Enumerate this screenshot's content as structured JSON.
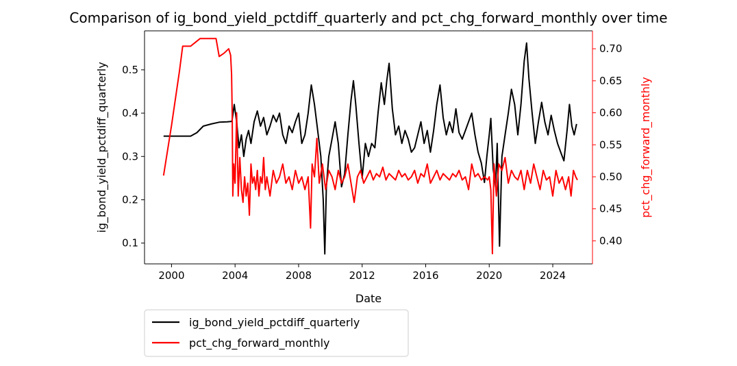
{
  "chart_data": {
    "type": "line",
    "title": "Comparison of ig_bond_yield_pctdiff_quarterly and pct_chg_forward_monthly over time",
    "xlabel": "Date",
    "ylabel_left": "ig_bond_yield_pctdiff_quarterly",
    "ylabel_right": "pct_chg_forward_monthly",
    "x_range": [
      1998.3,
      2026.5
    ],
    "x_ticks": [
      2000,
      2004,
      2008,
      2012,
      2016,
      2020,
      2024
    ],
    "x_tick_labels": [
      "2000",
      "2004",
      "2008",
      "2012",
      "2016",
      "2020",
      "2024"
    ],
    "y_left_range": [
      0.052,
      0.59
    ],
    "y_left_ticks": [
      0.1,
      0.2,
      0.3,
      0.4,
      0.5
    ],
    "y_left_tick_labels": [
      "0.1",
      "0.2",
      "0.3",
      "0.4",
      "0.5"
    ],
    "y_right_range": [
      0.364,
      0.728
    ],
    "y_right_ticks": [
      0.4,
      0.45,
      0.5,
      0.55,
      0.6,
      0.65,
      0.7
    ],
    "y_right_tick_labels": [
      "0.40",
      "0.45",
      "0.50",
      "0.55",
      "0.60",
      "0.65",
      "0.70"
    ],
    "right_axis_color": "#ff0000",
    "legend_position": "below-left",
    "series": [
      {
        "name": "ig_bond_yield_pctdiff_quarterly",
        "axis": "left",
        "color": "#000000",
        "points": [
          [
            1999.5,
            0.347
          ],
          [
            2000.5,
            0.347
          ],
          [
            2001.2,
            0.347
          ],
          [
            2001.6,
            0.355
          ],
          [
            2002.0,
            0.37
          ],
          [
            2002.5,
            0.375
          ],
          [
            2003.0,
            0.379
          ],
          [
            2003.5,
            0.38
          ],
          [
            2003.8,
            0.381
          ],
          [
            2003.95,
            0.42
          ],
          [
            2004.1,
            0.38
          ],
          [
            2004.25,
            0.32
          ],
          [
            2004.4,
            0.35
          ],
          [
            2004.55,
            0.3
          ],
          [
            2004.7,
            0.34
          ],
          [
            2004.85,
            0.36
          ],
          [
            2005.0,
            0.33
          ],
          [
            2005.2,
            0.38
          ],
          [
            2005.4,
            0.405
          ],
          [
            2005.6,
            0.37
          ],
          [
            2005.8,
            0.39
          ],
          [
            2006.0,
            0.35
          ],
          [
            2006.2,
            0.37
          ],
          [
            2006.4,
            0.395
          ],
          [
            2006.6,
            0.38
          ],
          [
            2006.8,
            0.4
          ],
          [
            2007.0,
            0.35
          ],
          [
            2007.2,
            0.33
          ],
          [
            2007.4,
            0.37
          ],
          [
            2007.6,
            0.355
          ],
          [
            2007.8,
            0.38
          ],
          [
            2008.0,
            0.4
          ],
          [
            2008.2,
            0.33
          ],
          [
            2008.4,
            0.35
          ],
          [
            2008.6,
            0.4
          ],
          [
            2008.8,
            0.465
          ],
          [
            2009.0,
            0.42
          ],
          [
            2009.2,
            0.36
          ],
          [
            2009.4,
            0.3
          ],
          [
            2009.55,
            0.2
          ],
          [
            2009.65,
            0.075
          ],
          [
            2009.75,
            0.23
          ],
          [
            2009.9,
            0.3
          ],
          [
            2010.1,
            0.34
          ],
          [
            2010.3,
            0.38
          ],
          [
            2010.5,
            0.33
          ],
          [
            2010.7,
            0.23
          ],
          [
            2010.9,
            0.26
          ],
          [
            2011.1,
            0.35
          ],
          [
            2011.3,
            0.43
          ],
          [
            2011.45,
            0.475
          ],
          [
            2011.6,
            0.42
          ],
          [
            2011.8,
            0.33
          ],
          [
            2012.0,
            0.25
          ],
          [
            2012.2,
            0.33
          ],
          [
            2012.4,
            0.3
          ],
          [
            2012.6,
            0.33
          ],
          [
            2012.8,
            0.32
          ],
          [
            2013.0,
            0.4
          ],
          [
            2013.2,
            0.47
          ],
          [
            2013.4,
            0.42
          ],
          [
            2013.55,
            0.475
          ],
          [
            2013.7,
            0.515
          ],
          [
            2013.9,
            0.41
          ],
          [
            2014.1,
            0.35
          ],
          [
            2014.3,
            0.37
          ],
          [
            2014.5,
            0.33
          ],
          [
            2014.7,
            0.36
          ],
          [
            2014.9,
            0.34
          ],
          [
            2015.1,
            0.31
          ],
          [
            2015.3,
            0.32
          ],
          [
            2015.5,
            0.35
          ],
          [
            2015.7,
            0.38
          ],
          [
            2015.9,
            0.33
          ],
          [
            2016.1,
            0.36
          ],
          [
            2016.3,
            0.31
          ],
          [
            2016.5,
            0.36
          ],
          [
            2016.7,
            0.42
          ],
          [
            2016.9,
            0.465
          ],
          [
            2017.1,
            0.39
          ],
          [
            2017.3,
            0.35
          ],
          [
            2017.5,
            0.38
          ],
          [
            2017.7,
            0.355
          ],
          [
            2017.9,
            0.41
          ],
          [
            2018.1,
            0.355
          ],
          [
            2018.3,
            0.34
          ],
          [
            2018.5,
            0.36
          ],
          [
            2018.7,
            0.38
          ],
          [
            2018.9,
            0.4
          ],
          [
            2019.1,
            0.35
          ],
          [
            2019.3,
            0.31
          ],
          [
            2019.5,
            0.285
          ],
          [
            2019.7,
            0.24
          ],
          [
            2019.85,
            0.3
          ],
          [
            2020.0,
            0.35
          ],
          [
            2020.1,
            0.388
          ],
          [
            2020.25,
            0.27
          ],
          [
            2020.4,
            0.23
          ],
          [
            2020.5,
            0.33
          ],
          [
            2020.65,
            0.093
          ],
          [
            2020.8,
            0.3
          ],
          [
            2021.0,
            0.35
          ],
          [
            2021.2,
            0.4
          ],
          [
            2021.4,
            0.455
          ],
          [
            2021.6,
            0.42
          ],
          [
            2021.8,
            0.35
          ],
          [
            2022.0,
            0.42
          ],
          [
            2022.2,
            0.52
          ],
          [
            2022.35,
            0.562
          ],
          [
            2022.5,
            0.48
          ],
          [
            2022.7,
            0.4
          ],
          [
            2022.9,
            0.33
          ],
          [
            2023.1,
            0.38
          ],
          [
            2023.3,
            0.425
          ],
          [
            2023.5,
            0.38
          ],
          [
            2023.7,
            0.35
          ],
          [
            2023.9,
            0.395
          ],
          [
            2024.1,
            0.36
          ],
          [
            2024.3,
            0.33
          ],
          [
            2024.5,
            0.31
          ],
          [
            2024.7,
            0.29
          ],
          [
            2024.9,
            0.36
          ],
          [
            2025.05,
            0.42
          ],
          [
            2025.2,
            0.37
          ],
          [
            2025.35,
            0.35
          ],
          [
            2025.5,
            0.375
          ]
        ]
      },
      {
        "name": "pct_chg_forward_monthly",
        "axis": "right",
        "color": "#ff0000",
        "points": [
          [
            1999.5,
            0.502
          ],
          [
            2000.0,
            0.58
          ],
          [
            2000.5,
            0.665
          ],
          [
            2000.7,
            0.704
          ],
          [
            2001.2,
            0.704
          ],
          [
            2001.5,
            0.71
          ],
          [
            2001.8,
            0.716
          ],
          [
            2002.5,
            0.716
          ],
          [
            2002.8,
            0.716
          ],
          [
            2003.0,
            0.688
          ],
          [
            2003.3,
            0.693
          ],
          [
            2003.6,
            0.7
          ],
          [
            2003.72,
            0.69
          ],
          [
            2003.78,
            0.66
          ],
          [
            2003.82,
            0.6
          ],
          [
            2003.86,
            0.47
          ],
          [
            2003.92,
            0.52
          ],
          [
            2004.0,
            0.49
          ],
          [
            2004.1,
            0.6
          ],
          [
            2004.2,
            0.47
          ],
          [
            2004.3,
            0.53
          ],
          [
            2004.4,
            0.48
          ],
          [
            2004.5,
            0.46
          ],
          [
            2004.6,
            0.5
          ],
          [
            2004.7,
            0.47
          ],
          [
            2004.8,
            0.49
          ],
          [
            2004.9,
            0.44
          ],
          [
            2005.0,
            0.52
          ],
          [
            2005.1,
            0.49
          ],
          [
            2005.2,
            0.5
          ],
          [
            2005.3,
            0.48
          ],
          [
            2005.4,
            0.51
          ],
          [
            2005.5,
            0.47
          ],
          [
            2005.6,
            0.5
          ],
          [
            2005.7,
            0.49
          ],
          [
            2005.8,
            0.53
          ],
          [
            2005.9,
            0.48
          ],
          [
            2006.0,
            0.5
          ],
          [
            2006.2,
            0.47
          ],
          [
            2006.4,
            0.51
          ],
          [
            2006.6,
            0.49
          ],
          [
            2006.8,
            0.5
          ],
          [
            2007.0,
            0.52
          ],
          [
            2007.2,
            0.49
          ],
          [
            2007.4,
            0.5
          ],
          [
            2007.6,
            0.48
          ],
          [
            2007.8,
            0.51
          ],
          [
            2008.0,
            0.49
          ],
          [
            2008.2,
            0.5
          ],
          [
            2008.4,
            0.48
          ],
          [
            2008.6,
            0.5
          ],
          [
            2008.75,
            0.42
          ],
          [
            2008.85,
            0.52
          ],
          [
            2009.0,
            0.5
          ],
          [
            2009.15,
            0.56
          ],
          [
            2009.3,
            0.49
          ],
          [
            2009.5,
            0.52
          ],
          [
            2009.7,
            0.48
          ],
          [
            2009.9,
            0.51
          ],
          [
            2010.1,
            0.5
          ],
          [
            2010.3,
            0.48
          ],
          [
            2010.5,
            0.51
          ],
          [
            2010.7,
            0.49
          ],
          [
            2010.9,
            0.5
          ],
          [
            2011.1,
            0.52
          ],
          [
            2011.3,
            0.49
          ],
          [
            2011.5,
            0.46
          ],
          [
            2011.7,
            0.5
          ],
          [
            2011.9,
            0.51
          ],
          [
            2012.1,
            0.49
          ],
          [
            2012.3,
            0.5
          ],
          [
            2012.5,
            0.51
          ],
          [
            2012.7,
            0.495
          ],
          [
            2012.9,
            0.505
          ],
          [
            2013.1,
            0.5
          ],
          [
            2013.3,
            0.515
          ],
          [
            2013.5,
            0.495
          ],
          [
            2013.7,
            0.505
          ],
          [
            2013.9,
            0.5
          ],
          [
            2014.1,
            0.495
          ],
          [
            2014.3,
            0.51
          ],
          [
            2014.5,
            0.5
          ],
          [
            2014.7,
            0.505
          ],
          [
            2014.9,
            0.495
          ],
          [
            2015.1,
            0.5
          ],
          [
            2015.3,
            0.51
          ],
          [
            2015.5,
            0.49
          ],
          [
            2015.7,
            0.505
          ],
          [
            2015.9,
            0.5
          ],
          [
            2016.1,
            0.52
          ],
          [
            2016.3,
            0.49
          ],
          [
            2016.5,
            0.5
          ],
          [
            2016.7,
            0.51
          ],
          [
            2016.9,
            0.495
          ],
          [
            2017.1,
            0.505
          ],
          [
            2017.3,
            0.5
          ],
          [
            2017.5,
            0.495
          ],
          [
            2017.7,
            0.505
          ],
          [
            2017.9,
            0.5
          ],
          [
            2018.1,
            0.51
          ],
          [
            2018.3,
            0.495
          ],
          [
            2018.5,
            0.5
          ],
          [
            2018.7,
            0.48
          ],
          [
            2018.9,
            0.52
          ],
          [
            2019.1,
            0.5
          ],
          [
            2019.3,
            0.505
          ],
          [
            2019.5,
            0.495
          ],
          [
            2019.7,
            0.5
          ],
          [
            2019.9,
            0.495
          ],
          [
            2020.0,
            0.5
          ],
          [
            2020.1,
            0.48
          ],
          [
            2020.2,
            0.38
          ],
          [
            2020.3,
            0.52
          ],
          [
            2020.45,
            0.47
          ],
          [
            2020.6,
            0.52
          ],
          [
            2020.8,
            0.51
          ],
          [
            2021.0,
            0.53
          ],
          [
            2021.2,
            0.49
          ],
          [
            2021.4,
            0.51
          ],
          [
            2021.6,
            0.5
          ],
          [
            2021.8,
            0.495
          ],
          [
            2022.0,
            0.51
          ],
          [
            2022.2,
            0.48
          ],
          [
            2022.4,
            0.51
          ],
          [
            2022.6,
            0.49
          ],
          [
            2022.8,
            0.52
          ],
          [
            2023.0,
            0.5
          ],
          [
            2023.2,
            0.48
          ],
          [
            2023.4,
            0.51
          ],
          [
            2023.6,
            0.495
          ],
          [
            2023.8,
            0.5
          ],
          [
            2024.0,
            0.47
          ],
          [
            2024.2,
            0.51
          ],
          [
            2024.4,
            0.49
          ],
          [
            2024.6,
            0.5
          ],
          [
            2024.8,
            0.48
          ],
          [
            2025.0,
            0.5
          ],
          [
            2025.15,
            0.47
          ],
          [
            2025.3,
            0.51
          ],
          [
            2025.45,
            0.5
          ],
          [
            2025.55,
            0.495
          ]
        ]
      }
    ]
  }
}
